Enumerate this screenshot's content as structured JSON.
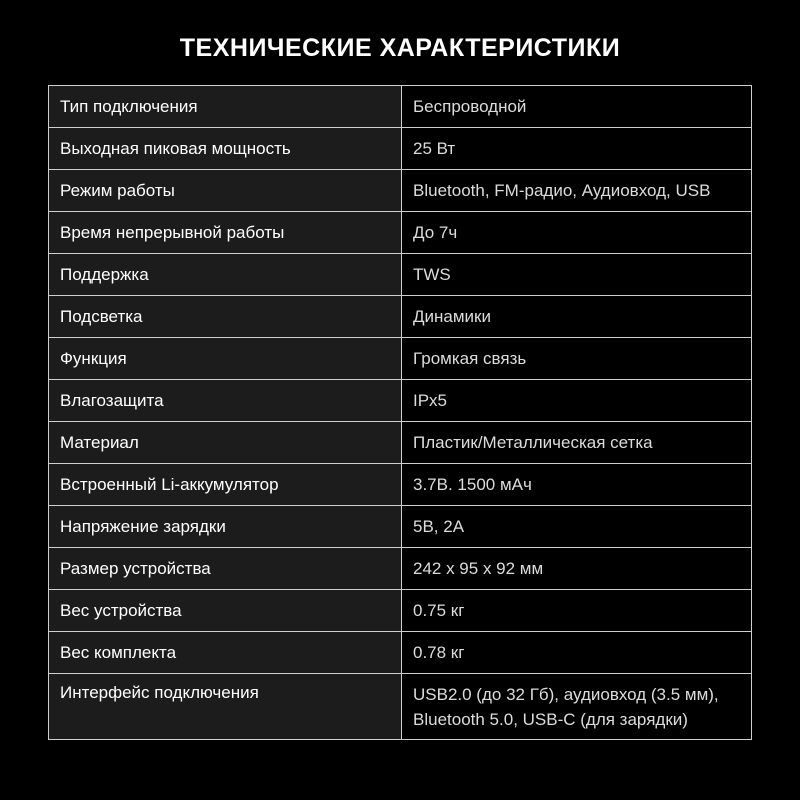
{
  "title": "ТЕХНИЧЕСКИЕ ХАРАКТЕРИСТИКИ",
  "specs": [
    {
      "label": "Тип подключения",
      "value": "Беспроводной"
    },
    {
      "label": "Выходная пиковая мощность",
      "value": "25 Вт"
    },
    {
      "label": "Режим работы",
      "value": "Bluetooth, FM-радио, Аудиовход, USB"
    },
    {
      "label": "Время непрерывной работы",
      "value": "До 7ч"
    },
    {
      "label": "Поддержка",
      "value": "TWS"
    },
    {
      "label": "Подсветка",
      "value": "Динамики"
    },
    {
      "label": "Функция",
      "value": "Громкая связь"
    },
    {
      "label": "Влагозащита",
      "value": "IPx5"
    },
    {
      "label": "Материал",
      "value": "Пластик/Металлическая сетка"
    },
    {
      "label": "Встроенный Li-аккумулятор",
      "value": "3.7В. 1500 мАч"
    },
    {
      "label": "Напряжение зарядки",
      "value": "5В, 2А"
    },
    {
      "label": "Размер устройства",
      "value": "242 х 95 х 92 мм"
    },
    {
      "label": "Вес устройства",
      "value": "0.75 кг"
    },
    {
      "label": "Вес комплекта",
      "value": "0.78 кг"
    },
    {
      "label": "Интерфейс подключения",
      "value": "USB2.0 (до 32 Гб), аудиовход (3.5 мм),",
      "value2": "Bluetooth 5.0, USB-C (для зарядки)"
    }
  ]
}
